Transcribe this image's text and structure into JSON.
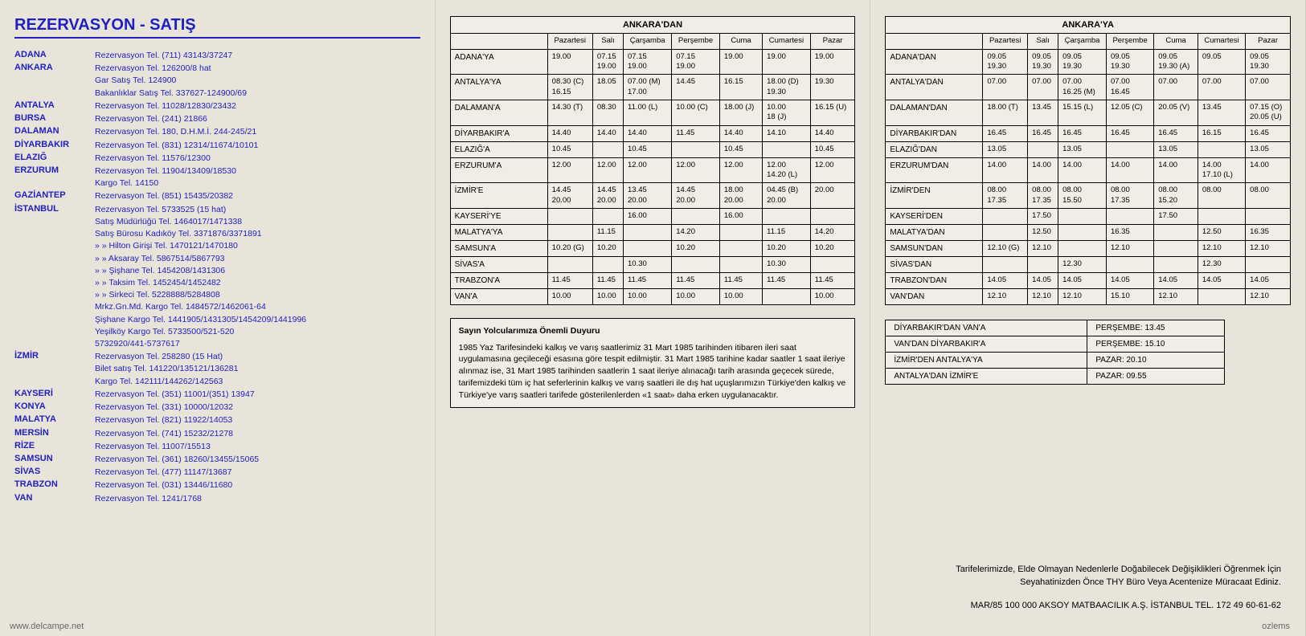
{
  "heading": "REZERVASYON - SATIŞ",
  "reservations": [
    {
      "city": "ADANA",
      "info": "Rezervasyon Tel. (711) 43143/37247"
    },
    {
      "city": "ANKARA",
      "info": "Rezervasyon Tel. 126200/8 hat\nGar Satış Tel. 124900\nBakanlıklar Satış Tel. 337627-124900/69"
    },
    {
      "city": "ANTALYA",
      "info": "Rezervasyon Tel. 11028/12830/23432"
    },
    {
      "city": "BURSA",
      "info": "Rezervasyon Tel. (241) 21866"
    },
    {
      "city": "DALAMAN",
      "info": "Rezervasyon Tel. 180, D.H.M.İ. 244-245/21"
    },
    {
      "city": "DİYARBAKIR",
      "info": "Rezervasyon Tel. (831) 12314/11674/10101"
    },
    {
      "city": "ELAZIĞ",
      "info": "Rezervasyon Tel. 11576/12300"
    },
    {
      "city": "ERZURUM",
      "info": "Rezervasyon Tel. 11904/13409/18530\nKargo Tel. 14150"
    },
    {
      "city": "GAZİANTEP",
      "info": "Rezervasyon Tel. (851) 15435/20382"
    },
    {
      "city": "İSTANBUL",
      "info": "Rezervasyon Tel. 5733525 (15 hat)\nSatış Müdürlüğü Tel. 1464017/1471338\nSatış Bürosu Kadıköy Tel. 3371876/3371891\n   »     »   Hilton Girişi Tel. 1470121/1470180\n   »     »   Aksaray Tel. 5867514/5867793\n   »     »   Şişhane Tel. 1454208/1431306\n   »     »   Taksim Tel.  1452454/1452482\n   »     »   Sirkeci Tel.  5228888/5284808\nMrkz.Gn.Md. Kargo Tel. 1484572/1462061-64\nŞişhane Kargo Tel. 1441905/1431305/1454209/1441996\nYeşilköy Kargo Tel. 5733500/521-520\n5732920/441-5737617"
    },
    {
      "city": "İZMİR",
      "info": "Rezervasyon Tel. 258280 (15 Hat)\nBilet satış Tel. 141220/135121/136281\nKargo Tel. 142111/144262/142563"
    },
    {
      "city": "KAYSERİ",
      "info": "Rezervasyon Tel. (351) 11001/(351) 13947"
    },
    {
      "city": "KONYA",
      "info": "Rezervasyon Tel. (331) 10000/12032"
    },
    {
      "city": "MALATYA",
      "info": "Rezervasyon Tel. (821) 11922/14053"
    },
    {
      "city": "MERSİN",
      "info": "Rezervasyon Tel. (741) 15232/21278"
    },
    {
      "city": "RİZE",
      "info": "Rezervasyon Tel. 11007/15513"
    },
    {
      "city": "SAMSUN",
      "info": "Rezervasyon Tel. (361) 18260/13455/15065"
    },
    {
      "city": "SİVAS",
      "info": "Rezervasyon Tel. (477) 11147/13687"
    },
    {
      "city": "TRABZON",
      "info": "Rezervasyon Tel. (031) 13446/11680"
    },
    {
      "city": "VAN",
      "info": "Rezervasyon Tel. 1241/1768"
    }
  ],
  "table_from": {
    "title": "ANKARA'DAN",
    "columns": [
      "Pazartesi",
      "Salı",
      "Çarşamba",
      "Perşembe",
      "Cuma",
      "Cumartesi",
      "Pazar"
    ],
    "rows": [
      {
        "dest": "ADANA'YA",
        "cells": [
          "19.00",
          "07.15\n19.00",
          "07.15\n19.00",
          "07.15\n19.00",
          "19.00",
          "19.00",
          "19.00"
        ]
      },
      {
        "dest": "ANTALYA'YA",
        "cells": [
          "08.30 (C)\n16.15",
          "18.05",
          "07.00 (M)\n17.00",
          "14.45",
          "16.15",
          "18.00 (D)\n19.30",
          "19.30"
        ]
      },
      {
        "dest": "DALAMAN'A",
        "cells": [
          "14.30 (T)",
          "08.30",
          "11.00 (L)",
          "10.00 (C)",
          "18.00 (J)",
          "10.00\n18 (J)",
          "16.15 (U)"
        ]
      },
      {
        "dest": "DİYARBAKIR'A",
        "cells": [
          "14.40",
          "14.40",
          "14.40",
          "11.45",
          "14.40",
          "14.10",
          "14.40"
        ]
      },
      {
        "dest": "ELAZIĞ'A",
        "cells": [
          "10.45",
          "",
          "10.45",
          "",
          "10.45",
          "",
          "10.45"
        ]
      },
      {
        "dest": "ERZURUM'A",
        "cells": [
          "12.00",
          "12.00",
          "12.00",
          "12.00",
          "12.00",
          "12.00\n14.20 (L)",
          "12.00"
        ]
      },
      {
        "dest": "İZMİR'E",
        "cells": [
          "14.45\n20.00",
          "14.45\n20.00",
          "13.45\n20.00",
          "14.45\n20.00",
          "18.00\n20.00",
          "04.45 (B)\n20.00",
          "20.00"
        ]
      },
      {
        "dest": "KAYSERİ'YE",
        "cells": [
          "",
          "",
          "16.00",
          "",
          "16.00",
          "",
          ""
        ]
      },
      {
        "dest": "MALATYA'YA",
        "cells": [
          "",
          "11.15",
          "",
          "14.20",
          "",
          "11.15",
          "14.20"
        ]
      },
      {
        "dest": "SAMSUN'A",
        "cells": [
          "10.20 (G)",
          "10.20",
          "",
          "10.20",
          "",
          "10.20",
          "10.20"
        ]
      },
      {
        "dest": "SİVAS'A",
        "cells": [
          "",
          "",
          "10.30",
          "",
          "",
          "10.30",
          ""
        ]
      },
      {
        "dest": "TRABZON'A",
        "cells": [
          "11.45",
          "11.45",
          "11.45",
          "11.45",
          "11.45",
          "11.45",
          "11.45"
        ]
      },
      {
        "dest": "VAN'A",
        "cells": [
          "10.00",
          "10.00",
          "10.00",
          "10.00",
          "10.00",
          "",
          "10.00"
        ]
      }
    ]
  },
  "table_to": {
    "title": "ANKARA'YA",
    "columns": [
      "Pazartesi",
      "Salı",
      "Çarşamba",
      "Perşembe",
      "Cuma",
      "Cumartesi",
      "Pazar"
    ],
    "rows": [
      {
        "dest": "ADANA'DAN",
        "cells": [
          "09.05\n19.30",
          "09.05\n19.30",
          "09.05\n19.30",
          "09.05\n19.30",
          "09.05\n19.30 (A)",
          "09.05",
          "09.05\n19.30"
        ]
      },
      {
        "dest": "ANTALYA'DAN",
        "cells": [
          "07.00",
          "07.00",
          "07.00\n16.25 (M)",
          "07.00\n16.45",
          "07.00",
          "07.00",
          "07.00"
        ]
      },
      {
        "dest": "DALAMAN'DAN",
        "cells": [
          "18.00 (T)",
          "13.45",
          "15.15 (L)",
          "12.05 (C)",
          "20.05 (V)",
          "13.45",
          "07.15 (O)\n20.05 (U)"
        ]
      },
      {
        "dest": "DİYARBAKIR'DAN",
        "cells": [
          "16.45",
          "16.45",
          "16.45",
          "16.45",
          "16.45",
          "16.15",
          "16.45"
        ]
      },
      {
        "dest": "ELAZIĞ'DAN",
        "cells": [
          "13.05",
          "",
          "13.05",
          "",
          "13.05",
          "",
          "13.05"
        ]
      },
      {
        "dest": "ERZURUM'DAN",
        "cells": [
          "14.00",
          "14.00",
          "14.00",
          "14.00",
          "14.00",
          "14.00\n17.10 (L)",
          "14.00"
        ]
      },
      {
        "dest": "İZMİR'DEN",
        "cells": [
          "08.00\n17.35",
          "08.00\n17.35",
          "08.00\n15.50",
          "08.00\n17.35",
          "08.00\n15.20",
          "08.00",
          "08.00"
        ]
      },
      {
        "dest": "KAYSERİ'DEN",
        "cells": [
          "",
          "17.50",
          "",
          "",
          "17.50",
          "",
          ""
        ]
      },
      {
        "dest": "MALATYA'DAN",
        "cells": [
          "",
          "12.50",
          "",
          "16.35",
          "",
          "12.50",
          "16.35"
        ]
      },
      {
        "dest": "SAMSUN'DAN",
        "cells": [
          "12.10 (G)",
          "12.10",
          "",
          "12.10",
          "",
          "12.10",
          "12.10"
        ]
      },
      {
        "dest": "SİVAS'DAN",
        "cells": [
          "",
          "",
          "12.30",
          "",
          "",
          "12.30",
          ""
        ]
      },
      {
        "dest": "TRABZON'DAN",
        "cells": [
          "14.05",
          "14.05",
          "14.05",
          "14.05",
          "14.05",
          "14.05",
          "14.05"
        ]
      },
      {
        "dest": "VAN'DAN",
        "cells": [
          "12.10",
          "12.10",
          "12.10",
          "15.10",
          "12.10",
          "",
          "12.10"
        ]
      }
    ]
  },
  "notice_title": "Sayın Yolcularımıza Önemli Duyuru",
  "notice_body": "1985 Yaz Tarifesindeki kalkış ve varış saatlerimiz 31 Mart 1985 tarihinden itibaren ileri saat uygulamasına geçileceği esasına göre tespit edilmiştir. 31 Mart 1985 tarihine kadar saatler 1 saat ileriye alınmaz ise, 31 Mart 1985 tarihinden saatlerin 1 saat ileriye alınacağı tarih arasında geçecek sürede, tarifemizdeki tüm iç hat seferlerinin kalkış ve varış saatleri ile dış hat uçuşlarımızın Türkiye'den kalkış ve Türkiye'ye varış saatleri tarifede gösterilenlerden «1 saat» daha erken uygulanacaktır.",
  "extras": [
    {
      "route": "DİYARBAKIR'DAN VAN'A",
      "when": "PERŞEMBE: 13.45"
    },
    {
      "route": "VAN'DAN DİYARBAKIR'A",
      "when": "PERŞEMBE: 15.10"
    },
    {
      "route": "İZMİR'DEN ANTALYA'YA",
      "when": "PAZAR: 20.10"
    },
    {
      "route": "ANTALYA'DAN İZMİR'E",
      "when": "PAZAR: 09.55"
    }
  ],
  "footer1": "Tarifelerimizde, Elde Olmayan Nedenlerle Doğabilecek Değişiklikleri Öğrenmek İçin\nSeyahatinizden Önce THY Büro Veya Acentenize Müracaat Ediniz.",
  "footer2": "MAR/85 100 000 AKSOY MATBAACILIK A.Ş. İSTANBUL TEL. 172 49 60-61-62",
  "watermark_left": "www.delcampe.net",
  "watermark_right": "ozlems"
}
